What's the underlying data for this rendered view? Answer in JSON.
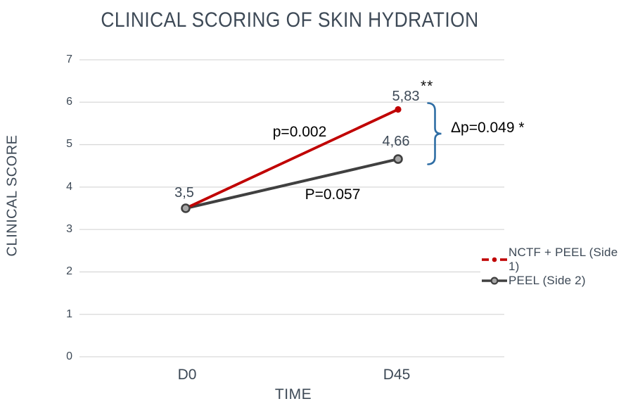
{
  "chart_data": {
    "type": "line",
    "title": "CLINICAL SCORING OF SKIN HYDRATION",
    "xlabel": "TIME",
    "ylabel": "CLINICAL SCORE",
    "categories": [
      "D0",
      "D45"
    ],
    "ylim": [
      0,
      7
    ],
    "yticks": [
      "0",
      "1",
      "2",
      "3",
      "4",
      "5",
      "6",
      "7"
    ],
    "grid": "horizontal-only",
    "legend_position": "right",
    "series": [
      {
        "name": "NCTF + PEEL (Side 1)",
        "color": "#c00000",
        "values": [
          3.5,
          5.83
        ],
        "end_label": "5,83",
        "significance": "**",
        "p_annotation": "p=0.002",
        "marker": "small-filled-dot",
        "legend_marker": "dash-dot-dash"
      },
      {
        "name": "PEEL (Side 2)",
        "color": "#404040",
        "marker_fill": "#a6a6a6",
        "values": [
          3.5,
          4.66
        ],
        "end_label": "4,66",
        "p_annotation": "P=0.057",
        "marker": "outlined-circle",
        "legend_marker": "line-circle"
      }
    ],
    "start_label": "3,5",
    "delta_annotation": "Δp=0.049 *",
    "colors": {
      "grid": "#d9d9d9",
      "text": "#3d4956",
      "annotation": "#000000",
      "brace": "#2e6da4"
    }
  }
}
